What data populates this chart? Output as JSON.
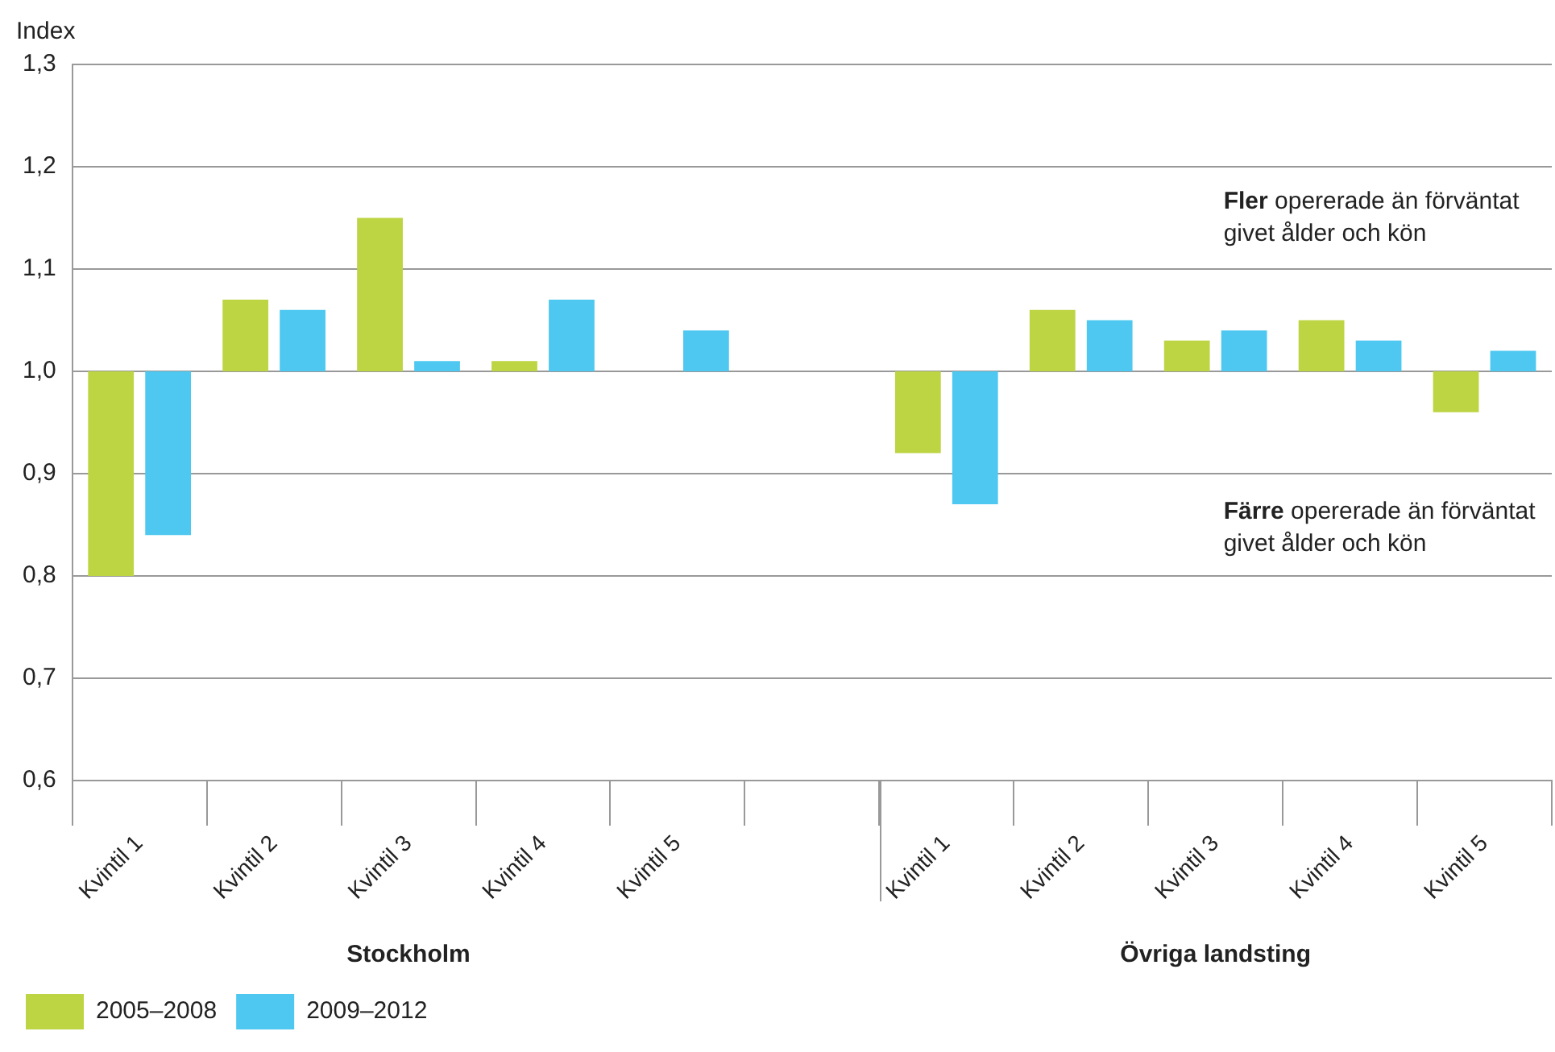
{
  "chart_data": {
    "type": "bar",
    "ylabel": "Index",
    "categories": [
      "Kvintil 1",
      "Kvintil 2",
      "Kvintil 3",
      "Kvintil 4",
      "Kvintil 5",
      null,
      "Kvintil 1",
      "Kvintil 2",
      "Kvintil 3",
      "Kvintil 4",
      "Kvintil 5"
    ],
    "series": [
      {
        "name": "2005–2008",
        "color": "#bdd443",
        "base": [
          1,
          1,
          1,
          1,
          null,
          null,
          1,
          1,
          1,
          1,
          1
        ],
        "values": [
          -0.2,
          0.07,
          0.15,
          0.01,
          null,
          null,
          -0.08,
          0.06,
          0.03,
          0.05,
          -0.04
        ]
      },
      {
        "name": "2009–2012",
        "color": "#4ec8f0",
        "base": [
          1,
          1,
          1,
          1,
          1,
          null,
          1,
          1,
          1,
          1,
          1
        ],
        "values": [
          -0.16,
          0.06,
          0.01,
          0.07,
          0.04,
          null,
          -0.13,
          0.05,
          0.04,
          0.03,
          0.02
        ]
      }
    ],
    "ylim": [
      0.6,
      1.3
    ],
    "yticks": [
      {
        "value": 0.6,
        "label": "0,6"
      },
      {
        "value": 0.7,
        "label": "0,7"
      },
      {
        "value": 0.8,
        "label": "0,8"
      },
      {
        "value": 0.9,
        "label": "0,9"
      },
      {
        "value": 1.0,
        "label": "1,0"
      },
      {
        "value": 1.1,
        "label": "1,1"
      },
      {
        "value": 1.2,
        "label": "1,2"
      },
      {
        "value": 1.3,
        "label": "1,3"
      }
    ],
    "grid": "y",
    "legend": "bottom left",
    "annotations": [
      "Fler opererade än förväntat givet ålder och kön",
      "Färre opererade än förväntat givet ålder och kön",
      "Stockholm",
      "Övriga landsting"
    ]
  }
}
